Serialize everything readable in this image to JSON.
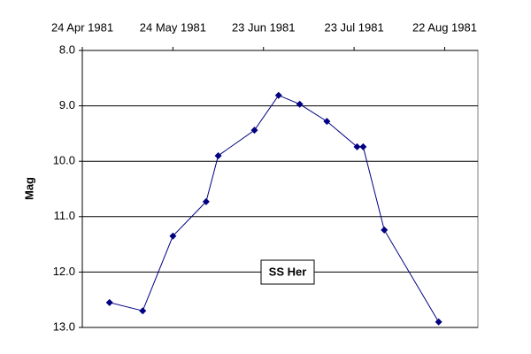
{
  "chart_data": {
    "type": "line",
    "y_label": "Mag",
    "annotation": "SS Her",
    "x": [
      "1981-05-03",
      "1981-05-14",
      "1981-05-24",
      "1981-06-04",
      "1981-06-08",
      "1981-06-20",
      "1981-06-28",
      "1981-07-05",
      "1981-07-14",
      "1981-07-24",
      "1981-07-26",
      "1981-08-02",
      "1981-08-20"
    ],
    "series": [
      {
        "color": "#000080",
        "values": [
          12.55,
          12.7,
          11.35,
          10.73,
          9.9,
          9.44,
          8.81,
          8.97,
          9.28,
          9.74,
          9.74,
          11.24,
          12.9
        ]
      }
    ],
    "xlim": [
      "1981-04-24",
      "1981-09-02"
    ],
    "xticks": [
      {
        "value": "1981-04-24",
        "label": "24 Apr 1981"
      },
      {
        "value": "1981-05-24",
        "label": "24 May 1981"
      },
      {
        "value": "1981-06-23",
        "label": "23 Jun 1981"
      },
      {
        "value": "1981-07-23",
        "label": "23 Jul 1981"
      },
      {
        "value": "1981-08-22",
        "label": "22 Aug 1981"
      }
    ],
    "ylim": [
      8,
      13
    ],
    "y_reversed": true,
    "yticks": [
      {
        "value": 8,
        "label": "8.0"
      },
      {
        "value": 9,
        "label": "9.0"
      },
      {
        "value": 10,
        "label": "10.0"
      },
      {
        "value": 11,
        "label": "11.0"
      },
      {
        "value": 12,
        "label": "12.0"
      },
      {
        "value": 13,
        "label": "13.0"
      }
    ],
    "grid": true
  }
}
